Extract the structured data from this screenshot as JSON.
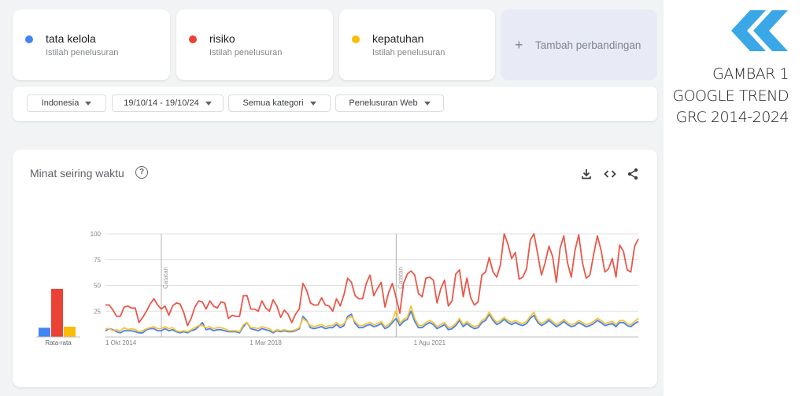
{
  "terms": [
    {
      "name": "tata kelola",
      "subtitle": "Istilah penelusuran",
      "color": "#4285f4"
    },
    {
      "name": "risiko",
      "subtitle": "Istilah penelusuran",
      "color": "#ea4335"
    },
    {
      "name": "kepatuhan",
      "subtitle": "Istilah penelusuran",
      "color": "#fbbc04"
    }
  ],
  "add_comparison": {
    "icon": "plus-icon",
    "label": "Tambah perbandingan"
  },
  "filters": [
    {
      "label": "Indonesia"
    },
    {
      "label": "19/10/14 - 19/10/24"
    },
    {
      "label": "Semua kategori"
    },
    {
      "label": "Penelusuran Web"
    }
  ],
  "chart_card": {
    "title": "Minat seiring waktu",
    "help_icon": "help-icon",
    "tools": [
      "download-icon",
      "embed-code-icon",
      "share-icon"
    ]
  },
  "caption": {
    "line1": "GAMBAR 1",
    "line2": "GOOGLE TREND",
    "line3": "GRC 2014-2024",
    "logo_icon": "double-chevron-left-icon",
    "logo_color": "#3aa7e6"
  },
  "chart_data": {
    "type": "line",
    "x_ticks": [
      "1 Okt 2014",
      "1 Mar 2018",
      "1 Agu 2021"
    ],
    "y_ticks": [
      25,
      50,
      75,
      100
    ],
    "ylim": [
      0,
      100
    ],
    "annotations": [
      {
        "label": "Catatan",
        "x_index": 15
      },
      {
        "label": "Catatan",
        "x_index": 78
      }
    ],
    "average_label": "Rata-rata",
    "averages": [
      {
        "name": "tata kelola",
        "value": 9
      },
      {
        "name": "risiko",
        "value": 47
      },
      {
        "name": "kepatuhan",
        "value": 10
      }
    ],
    "series": [
      {
        "name": "risiko",
        "color": "#e8584a",
        "values": [
          31,
          31,
          26,
          20,
          20,
          29,
          30,
          28,
          28,
          14,
          19,
          25,
          32,
          37,
          31,
          27,
          30,
          21,
          30,
          33,
          32,
          24,
          11,
          18,
          29,
          35,
          34,
          27,
          35,
          30,
          28,
          34,
          33,
          18,
          21,
          20,
          20,
          40,
          40,
          27,
          27,
          25,
          35,
          28,
          25,
          36,
          30,
          19,
          26,
          22,
          14,
          22,
          27,
          52,
          45,
          33,
          31,
          31,
          38,
          31,
          30,
          25,
          37,
          30,
          41,
          57,
          53,
          40,
          37,
          37,
          52,
          60,
          40,
          47,
          53,
          29,
          43,
          52,
          38,
          23,
          52,
          61,
          64,
          60,
          42,
          39,
          57,
          58,
          55,
          33,
          47,
          55,
          30,
          35,
          61,
          65,
          39,
          57,
          38,
          31,
          34,
          60,
          63,
          77,
          63,
          58,
          70,
          100,
          90,
          76,
          82,
          56,
          58,
          66,
          94,
          100,
          80,
          60,
          72,
          88,
          78,
          53,
          86,
          98,
          72,
          58,
          84,
          99,
          72,
          57,
          60,
          80,
          98,
          84,
          63,
          66,
          76,
          58,
          89,
          83,
          65,
          63,
          88,
          95
        ]
      },
      {
        "name": "tata kelola",
        "color": "#4a82e8",
        "values": [
          6,
          8,
          7,
          5,
          4,
          6,
          6,
          6,
          5,
          4,
          4,
          7,
          8,
          8,
          6,
          6,
          8,
          6,
          7,
          5,
          4,
          5,
          4,
          6,
          7,
          10,
          14,
          7,
          8,
          6,
          7,
          7,
          6,
          5,
          5,
          5,
          4,
          10,
          14,
          8,
          7,
          6,
          8,
          7,
          6,
          4,
          6,
          5,
          6,
          5,
          5,
          6,
          8,
          20,
          16,
          9,
          8,
          9,
          10,
          8,
          9,
          9,
          12,
          9,
          11,
          20,
          22,
          13,
          9,
          9,
          11,
          12,
          10,
          11,
          13,
          8,
          10,
          14,
          18,
          11,
          15,
          17,
          25,
          15,
          9,
          9,
          12,
          14,
          12,
          8,
          10,
          12,
          7,
          8,
          11,
          16,
          10,
          13,
          10,
          8,
          9,
          14,
          16,
          22,
          16,
          12,
          14,
          17,
          14,
          12,
          14,
          12,
          11,
          13,
          18,
          21,
          14,
          11,
          13,
          16,
          13,
          10,
          12,
          15,
          12,
          10,
          11,
          14,
          12,
          10,
          11,
          13,
          16,
          14,
          11,
          12,
          13,
          10,
          14,
          14,
          11,
          10,
          13,
          15
        ]
      },
      {
        "name": "kepatuhan",
        "color": "#f4c43a",
        "values": [
          8,
          8,
          6,
          7,
          6,
          9,
          7,
          8,
          7,
          5,
          6,
          8,
          9,
          10,
          8,
          8,
          10,
          8,
          9,
          6,
          5,
          6,
          5,
          7,
          9,
          11,
          11,
          9,
          10,
          8,
          9,
          9,
          8,
          6,
          6,
          6,
          5,
          12,
          14,
          9,
          9,
          8,
          10,
          9,
          8,
          5,
          7,
          6,
          7,
          6,
          6,
          7,
          9,
          18,
          15,
          11,
          10,
          11,
          12,
          10,
          11,
          11,
          14,
          11,
          13,
          18,
          20,
          15,
          11,
          11,
          13,
          14,
          12,
          13,
          15,
          10,
          12,
          16,
          26,
          13,
          17,
          19,
          30,
          18,
          11,
          11,
          14,
          16,
          14,
          10,
          12,
          14,
          9,
          10,
          13,
          18,
          12,
          15,
          12,
          10,
          11,
          16,
          18,
          24,
          18,
          14,
          16,
          19,
          16,
          14,
          16,
          14,
          13,
          15,
          20,
          24,
          16,
          13,
          15,
          18,
          15,
          12,
          14,
          17,
          14,
          12,
          13,
          16,
          14,
          12,
          13,
          15,
          18,
          16,
          13,
          14,
          15,
          12,
          16,
          16,
          13,
          12,
          15,
          18
        ]
      }
    ]
  }
}
